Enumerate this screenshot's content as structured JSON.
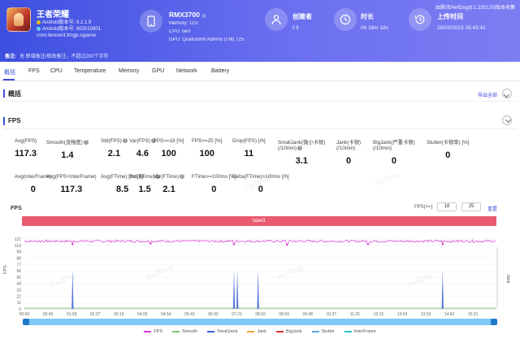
{
  "header": {
    "download_note": "由腾讯PerfDog(8.1.230120)版本收集",
    "game": {
      "title": "王者荣耀",
      "android_version_label": "Android版本号:",
      "android_version": "8.2.1.9",
      "android_build_label": "Android版本号:",
      "android_build": "802010901",
      "package": "com.tencent.tmgp.sgame"
    },
    "device": {
      "model": "RMX3700",
      "memory": "Memory: 11G",
      "cpu": "CPU: taro",
      "gpu": "GPU: Qualcomm Adreno (TM) 725"
    },
    "creator": {
      "label": "创建者",
      "value": "li li"
    },
    "duration": {
      "label": "时长",
      "value": "0h 16m 18s"
    },
    "upload": {
      "label": "上传时间",
      "value": "28/03/2023 16:43:41"
    }
  },
  "remark": {
    "label": "备注:",
    "text": "无 新增备注/修改备注，不超过200个字符"
  },
  "tabs": [
    "概括",
    "FPS",
    "CPU",
    "Temperature",
    "Memory",
    "GPU",
    "Network",
    "Battery"
  ],
  "summary": {
    "title": "概括",
    "export": "导出全部"
  },
  "fps_section": {
    "title": "FPS",
    "stats_row1": [
      {
        "label": "Avg(FPS)",
        "value": "117.3"
      },
      {
        "label": "Smooth(流畅度)",
        "value": "1.4"
      },
      {
        "label": "Std(FPS)",
        "value": "2.1"
      },
      {
        "label": "Var(FPS)",
        "value": "4.6"
      },
      {
        "label": "FPS>=18 [%]",
        "value": "100"
      },
      {
        "label": "FPS>=25 [%]",
        "value": "100"
      },
      {
        "label": "Drop(FPS) [/h]",
        "value": "11"
      },
      {
        "label": "SmallJank(微小卡顿) (/10min)",
        "value": "3.1"
      },
      {
        "label": "Jank(卡顿) (/10min)",
        "value": "0"
      },
      {
        "label": "BigJank(严重卡顿) (/10min)",
        "value": "0"
      },
      {
        "label": "Stutter(卡顿率) [%]",
        "value": "0"
      }
    ],
    "stats_row2": [
      {
        "label": "Avg(InterFrame)",
        "value": "0"
      },
      {
        "label": "Avg(FPS+InterFrame)",
        "value": "117.3"
      },
      {
        "label": "Avg(FTime) [ms]",
        "value": "8.5"
      },
      {
        "label": "Std(FTime)",
        "value": "1.5"
      },
      {
        "label": "Var(FTime)",
        "value": "2.1"
      },
      {
        "label": "FTime>=100ms [%]",
        "value": "0"
      },
      {
        "label": "Delta(FTime)>100ms [/h]",
        "value": "0"
      }
    ]
  },
  "chart_header": {
    "label": "FPS",
    "threshold_label": "FPS(>=)",
    "threshold_values": [
      "18",
      "25"
    ],
    "reset": "重置",
    "label_bar": "label1"
  },
  "chart_data": {
    "type": "line",
    "y_left_label": "FPS",
    "y_right_label": "Jank",
    "y_ticks": [
      "121",
      "110",
      "99",
      "88",
      "77",
      "66",
      "55",
      "44",
      "33",
      "22",
      "11",
      "0"
    ],
    "ylim": [
      0,
      121
    ],
    "x_ticks": [
      "00:00",
      "00:49",
      "01:38",
      "02:27",
      "03:16",
      "04:05",
      "04:54",
      "05:43",
      "06:32",
      "07:21",
      "08:10",
      "08:59",
      "09:48",
      "10:37",
      "11:26",
      "12:15",
      "13:04",
      "13:53",
      "14:42",
      "15:31"
    ],
    "x_range_seconds": [
      0,
      978
    ],
    "fps_baseline": 117.3,
    "fps_dips": [
      {
        "t_seconds": 100,
        "fps": 112
      },
      {
        "t_seconds": 262,
        "fps": 113
      },
      {
        "t_seconds": 435,
        "fps": 112
      },
      {
        "t_seconds": 545,
        "fps": 111
      },
      {
        "t_seconds": 713,
        "fps": 112
      },
      {
        "t_seconds": 868,
        "fps": 112
      }
    ],
    "small_jank_seconds": [
      100,
      435,
      442,
      485,
      868
    ],
    "series": [
      {
        "name": "FPS",
        "color": "#d63bd6"
      },
      {
        "name": "Smooth",
        "color": "#7fbf7f"
      },
      {
        "name": "SmallJank",
        "color": "#3a5fd6"
      },
      {
        "name": "Jank",
        "color": "#f0a030"
      },
      {
        "name": "BigJank",
        "color": "#e03030"
      },
      {
        "name": "Stutter",
        "color": "#60a0e0"
      },
      {
        "name": "InterFrame",
        "color": "#2ec0c0"
      }
    ]
  }
}
